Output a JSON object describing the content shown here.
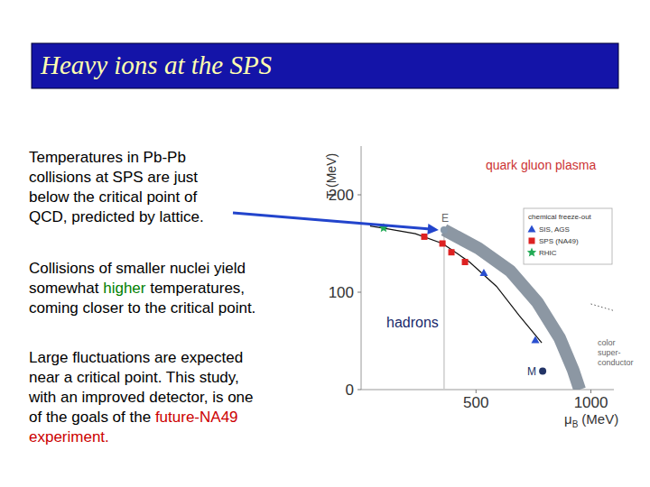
{
  "slide": {
    "title": "Heavy ions at the SPS",
    "paragraphs": [
      {
        "lines": [
          [
            {
              "text": "Temperatures in Pb-Pb",
              "color": "#000000"
            }
          ],
          [
            {
              "text": "collisions at SPS are just",
              "color": "#000000"
            }
          ],
          [
            {
              "text": "below the critical point of",
              "color": "#000000"
            }
          ],
          [
            {
              "text": "QCD, predicted by lattice.",
              "color": "#000000"
            }
          ]
        ]
      },
      {
        "lines": [
          [
            {
              "text": "Collisions of smaller nuclei yield",
              "color": "#000000"
            }
          ],
          [
            {
              "text": "somewhat ",
              "color": "#000000"
            },
            {
              "text": "higher",
              "color": "#008000"
            },
            {
              "text": " temperatures,",
              "color": "#000000"
            }
          ],
          [
            {
              "text": "coming closer to the critical point.",
              "color": "#000000"
            }
          ]
        ]
      },
      {
        "lines": [
          [
            {
              "text": "Large fluctuations are expected",
              "color": "#000000"
            }
          ],
          [
            {
              "text": "near a critical point. This study,",
              "color": "#000000"
            }
          ],
          [
            {
              "text": "with an improved detector, is one",
              "color": "#000000"
            }
          ],
          [
            {
              "text": "of the goals of the ",
              "color": "#000000"
            },
            {
              "text": "future-NA49",
              "color": "#cc0000"
            }
          ],
          [
            {
              "text": "experiment.",
              "color": "#cc0000"
            }
          ]
        ]
      }
    ]
  },
  "chart_data": {
    "type": "scatter",
    "y_label": "T (MeV)",
    "x_label": {
      "symbol": "μ",
      "subscript": "B",
      "unit": "(MeV)"
    },
    "xlim": [
      0,
      1100
    ],
    "xticks": [
      500,
      1000
    ],
    "ylim": [
      0,
      250
    ],
    "yticks": [
      0,
      100,
      200
    ],
    "grid": false,
    "legend": "upper right",
    "legend_title": "chemical freeze-out",
    "series": [
      {
        "name": "SIS, AGS",
        "color": "#2a4fd0",
        "marker": "triangle",
        "x": [
          534,
          758
        ],
        "values": [
          120,
          51
        ]
      },
      {
        "name": "SPS (NA49)",
        "color": "#dd2222",
        "marker": "square",
        "x": [
          275,
          354,
          393,
          452
        ],
        "values": [
          157,
          150,
          141,
          131
        ]
      },
      {
        "name": "RHIC",
        "color": "#22aa55",
        "marker": "star",
        "x": [
          98
        ],
        "values": [
          166
        ]
      }
    ],
    "lines": [
      {
        "color": "#111111",
        "line_style": "solid",
        "x": [
          39,
          118,
          236,
          354,
          472,
          589,
          688,
          786
        ],
        "values": [
          168,
          165,
          160,
          150,
          131,
          106,
          76,
          48
        ]
      },
      {
        "color": "#7f8c99",
        "line_style": "band",
        "x": [
          361,
          511,
          648,
          766,
          864,
          923,
          951
        ],
        "values": [
          164,
          145,
          122,
          90,
          53,
          20,
          0
        ]
      },
      {
        "color": "#555555",
        "line_style": "dotted",
        "x": [
          1000,
          1100
        ],
        "values": [
          88,
          81
        ]
      }
    ],
    "points": [
      {
        "label": "E",
        "color": "#8899aa",
        "x": 361,
        "value": 164
      },
      {
        "label": "M",
        "color": "#223366",
        "x": 790,
        "value": 19
      }
    ],
    "region_labels": [
      "quark gluon plasma",
      "hadrons"
    ],
    "region_label_colors": [
      "#cc3333",
      "#1a2a6c"
    ],
    "color_superconductor": [
      "color",
      "super-",
      "conductor"
    ]
  }
}
